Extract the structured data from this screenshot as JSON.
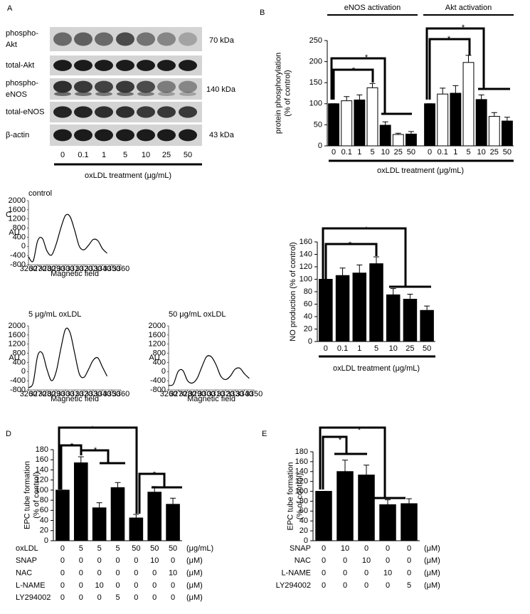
{
  "panels": [
    "A",
    "B",
    "C",
    "D",
    "E"
  ],
  "blot": {
    "rows": [
      [
        "phospho-",
        "Akt"
      ],
      [
        "total-Akt"
      ],
      [
        "phospho-",
        "eNOS"
      ],
      [
        "total-eNOS"
      ],
      [
        "β-actin"
      ]
    ],
    "sizes": [
      "70 kDa",
      "140 kDa",
      "43 kDa"
    ],
    "lanes": [
      "0",
      "0.1",
      "1",
      "5",
      "10",
      "25",
      "50"
    ],
    "xlabel": "oxLDL treatment (µg/mL)"
  },
  "chart_data": [
    {
      "type": "bar",
      "ylabel": [
        "protein phosphorylation",
        "(% of control)"
      ],
      "xlabel": "oxLDL treatment (μg/mL)",
      "categories": [
        "0",
        "0.1",
        "1",
        "5",
        "10",
        "25",
        "50"
      ],
      "colors": [
        "#000000",
        "#ffffff",
        "#000000",
        "#ffffff",
        "#000000",
        "#ffffff",
        "#000000"
      ],
      "series": [
        {
          "name": "eNOS activation",
          "values": [
            100,
            107,
            109,
            138,
            49,
            27,
            28
          ],
          "errors": [
            0,
            10,
            12,
            10,
            8,
            3,
            6
          ]
        },
        {
          "name": "Akt activation",
          "values": [
            100,
            123,
            125,
            198,
            110,
            70,
            59
          ],
          "errors": [
            0,
            14,
            18,
            17,
            11,
            9,
            9
          ]
        }
      ],
      "ylim": [
        0,
        250
      ],
      "yticks": [
        0,
        50,
        100,
        150,
        200,
        250
      ],
      "annotations": [
        "*",
        "*",
        "*",
        "*"
      ]
    },
    {
      "type": "line",
      "title": "control",
      "xlabel": "Magnetic field",
      "ylabel": "AU",
      "x": [
        3260,
        3265,
        3270,
        3275,
        3280,
        3285,
        3290,
        3295,
        3300,
        3305,
        3310,
        3315,
        3320,
        3325,
        3330,
        3335,
        3340,
        3345
      ],
      "series": [
        {
          "color": "#000000",
          "values": [
            -450,
            -650,
            250,
            350,
            -200,
            -380,
            100,
            800,
            1350,
            1300,
            700,
            0,
            -150,
            50,
            300,
            250,
            -100,
            -300
          ]
        }
      ],
      "xlim": [
        3260,
        3360
      ],
      "xticks": [
        3260,
        3270,
        3280,
        3290,
        3300,
        3310,
        3320,
        3330,
        3340,
        3350,
        3360
      ],
      "ylim": [
        -800,
        2000
      ],
      "yticks": [
        -800,
        -400,
        0,
        400,
        800,
        1200,
        1600,
        2000
      ]
    },
    {
      "type": "line",
      "title": "5 μg/mL oxLDL",
      "xlabel": "Magnetic field",
      "ylabel": "AU",
      "x": [
        3260,
        3265,
        3270,
        3275,
        3280,
        3285,
        3290,
        3295,
        3300,
        3305,
        3310,
        3315,
        3320,
        3325,
        3330,
        3335,
        3340,
        3345
      ],
      "series": [
        {
          "color": "#000000",
          "values": [
            -700,
            -500,
            700,
            800,
            100,
            -400,
            0,
            1000,
            1850,
            1700,
            800,
            -100,
            -250,
            100,
            500,
            600,
            200,
            -200
          ]
        }
      ],
      "xlim": [
        3260,
        3360
      ],
      "xticks": [
        3260,
        3270,
        3280,
        3290,
        3300,
        3310,
        3320,
        3330,
        3340,
        3350,
        3360
      ],
      "ylim": [
        -800,
        2000
      ],
      "yticks": [
        -800,
        -400,
        0,
        400,
        800,
        1200,
        1600,
        2000
      ]
    },
    {
      "type": "line",
      "title": "50 μg/mL oxLDL",
      "xlabel": "Magnetic field",
      "ylabel": "AU",
      "x": [
        3260,
        3265,
        3270,
        3275,
        3280,
        3285,
        3290,
        3295,
        3300,
        3305,
        3310,
        3315,
        3320,
        3325,
        3330,
        3335,
        3340,
        3345
      ],
      "series": [
        {
          "color": "#000000",
          "values": [
            -600,
            -550,
            0,
            50,
            -400,
            -500,
            -300,
            200,
            650,
            650,
            300,
            -200,
            -350,
            -200,
            100,
            150,
            -100,
            -300
          ]
        }
      ],
      "xlim": [
        3260,
        3350
      ],
      "xticks": [
        3260,
        3270,
        3280,
        3290,
        3300,
        3310,
        3320,
        3330,
        3340,
        3350
      ],
      "ylim": [
        -800,
        2000
      ],
      "yticks": [
        -800,
        -400,
        0,
        400,
        800,
        1200,
        1600,
        2000
      ]
    },
    {
      "type": "bar",
      "ylabel": [
        "NO production (% of control)"
      ],
      "xlabel": "oxLDL treatment (μg/mL)",
      "categories": [
        "0",
        "0.1",
        "1",
        "5",
        "10",
        "25",
        "50"
      ],
      "color": "#000000",
      "values": [
        100,
        106,
        110,
        125,
        75,
        68,
        50
      ],
      "errors": [
        0,
        12,
        13,
        11,
        10,
        8,
        7
      ],
      "ylim": [
        0,
        160
      ],
      "yticks": [
        0,
        20,
        40,
        60,
        80,
        100,
        120,
        140,
        160
      ],
      "annotations": [
        "*",
        "*"
      ]
    },
    {
      "type": "bar",
      "ylabel": [
        "EPC tube formation",
        "(% of control)"
      ],
      "color": "#000000",
      "values": [
        100,
        154,
        65,
        105,
        45,
        96,
        72
      ],
      "errors": [
        0,
        12,
        10,
        10,
        7,
        11,
        12
      ],
      "rows": [
        {
          "label": "oxLDL",
          "values": [
            0,
            5,
            5,
            5,
            50,
            50,
            50
          ],
          "unit": "(μg/mL)"
        },
        {
          "label": "SNAP",
          "values": [
            0,
            0,
            0,
            0,
            0,
            10,
            0
          ],
          "unit": "(μM)"
        },
        {
          "label": "NAC",
          "values": [
            0,
            0,
            0,
            0,
            0,
            0,
            10
          ],
          "unit": "(μM)"
        },
        {
          "label": "L-NAME",
          "values": [
            0,
            0,
            10,
            0,
            0,
            0,
            0
          ],
          "unit": "(μM)"
        },
        {
          "label": "LY294002",
          "values": [
            0,
            0,
            0,
            5,
            0,
            0,
            0
          ],
          "unit": "(μM)"
        }
      ],
      "ylim": [
        0,
        180
      ],
      "yticks": [
        0,
        20,
        40,
        60,
        80,
        100,
        120,
        140,
        160,
        180
      ],
      "annotations": [
        "*",
        "*",
        "*",
        "*"
      ]
    },
    {
      "type": "bar",
      "ylabel": [
        "EPC tube formation",
        "(% of control)"
      ],
      "color": "#000000",
      "values": [
        100,
        140,
        133,
        73,
        75
      ],
      "errors": [
        0,
        23,
        20,
        10,
        10
      ],
      "rows": [
        {
          "label": "SNAP",
          "values": [
            0,
            10,
            0,
            0,
            0
          ],
          "unit": "(μM)"
        },
        {
          "label": "NAC",
          "values": [
            0,
            0,
            10,
            0,
            0
          ],
          "unit": "(μM)"
        },
        {
          "label": "L-NAME",
          "values": [
            0,
            0,
            0,
            10,
            0
          ],
          "unit": "(μM)"
        },
        {
          "label": "LY294002",
          "values": [
            0,
            0,
            0,
            0,
            5
          ],
          "unit": "(μM)"
        }
      ],
      "ylim": [
        0,
        180
      ],
      "yticks": [
        0,
        20,
        40,
        60,
        80,
        100,
        120,
        140,
        160,
        180
      ],
      "annotations": [
        "*",
        "*"
      ]
    }
  ]
}
